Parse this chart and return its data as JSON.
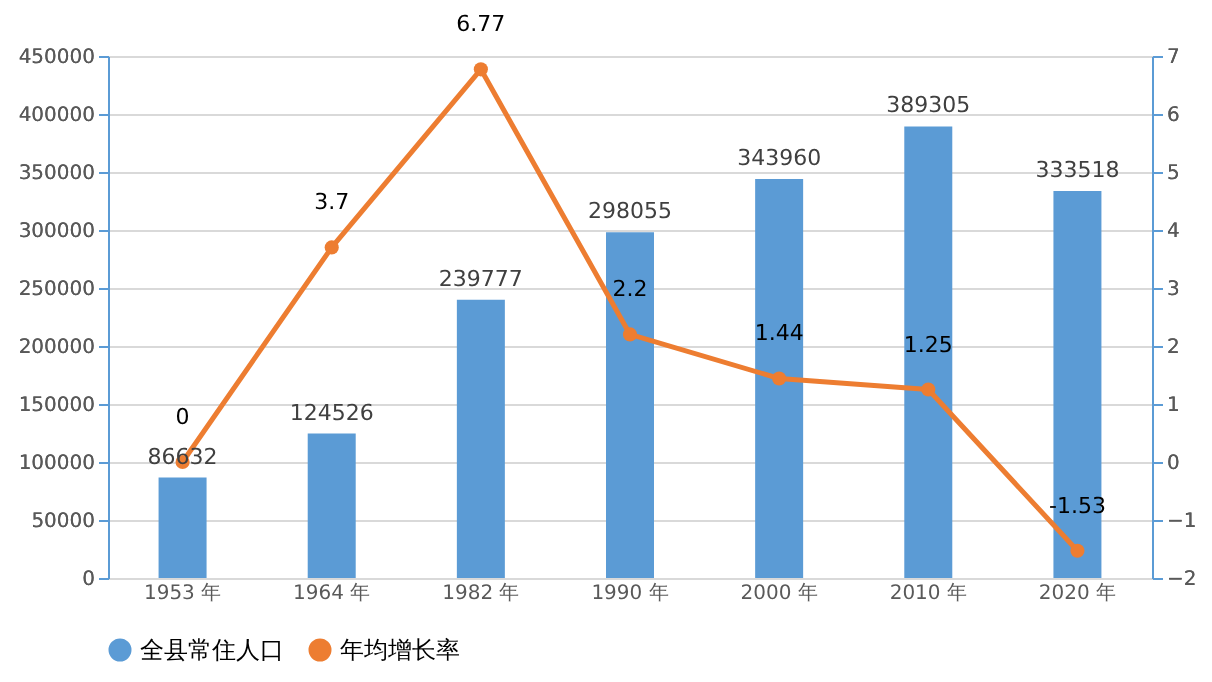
{
  "chart_data": {
    "type": "bar",
    "categories": [
      "1953 年",
      "1964 年",
      "1982 年",
      "1990 年",
      "2000 年",
      "2010 年",
      "2020 年"
    ],
    "series": [
      {
        "name": "全县常住人口",
        "color": "#5b9bd5",
        "values": [
          86632,
          124526,
          239777,
          298055,
          343960,
          389305,
          333518
        ]
      },
      {
        "name": "年均增长率",
        "type": "line",
        "axis": "y2",
        "color": "#ed7d31",
        "marker": "circle",
        "values": [
          0,
          3.7,
          6.77,
          2.2,
          1.44,
          1.25,
          -1.53
        ]
      }
    ],
    "ylim": [
      0,
      450000
    ],
    "yticks": [
      0,
      50000,
      100000,
      150000,
      200000,
      250000,
      300000,
      350000,
      400000,
      450000
    ],
    "y2lim": [
      -2,
      7
    ],
    "y2ticks": [
      -2,
      -1,
      0,
      1,
      2,
      3,
      4,
      5,
      6,
      7
    ],
    "grid": "y",
    "legend": "bottom",
    "data_labels": true
  }
}
